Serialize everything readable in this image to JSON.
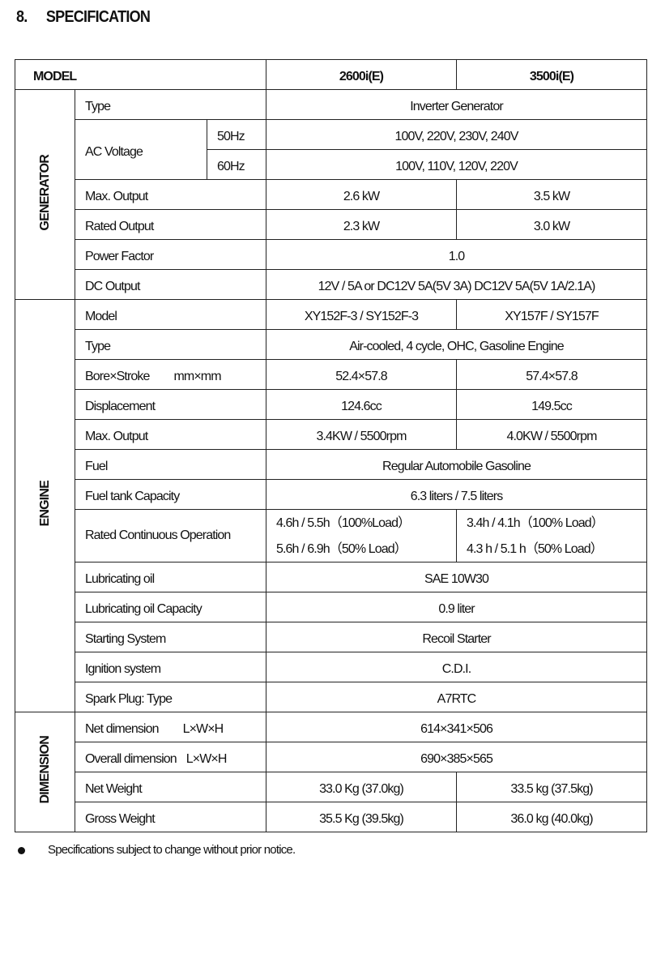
{
  "section": {
    "number": "8.",
    "title": "SPECIFICATION"
  },
  "header": {
    "model": "MODEL",
    "m1": "2600i(E)",
    "m2": "3500i(E)"
  },
  "generator": {
    "group": "GENERATOR",
    "type": {
      "label": "Type",
      "value": "Inverter Generator"
    },
    "ac": {
      "label": "AC Voltage",
      "hz50": "50Hz",
      "v50": "100V, 220V, 230V, 240V",
      "hz60": "60Hz",
      "v60": "100V, 110V, 120V, 220V"
    },
    "max_output": {
      "label": "Max. Output",
      "v1": "2.6 kW",
      "v2": "3.5 kW"
    },
    "rated_output": {
      "label": "Rated Output",
      "v1": "2.3 kW",
      "v2": "3.0 kW"
    },
    "power_factor": {
      "label": "Power Factor",
      "value": "1.0"
    },
    "dc_output": {
      "label": "DC Output",
      "value": "12V / 5A or DC12V 5A(5V 3A) DC12V 5A(5V 1A/2.1A)"
    }
  },
  "engine": {
    "group": "ENGINE",
    "model": {
      "label": "Model",
      "v1": "XY152F-3 / SY152F-3",
      "v2": "XY157F / SY157F"
    },
    "type": {
      "label": "Type",
      "value": "Air-cooled, 4 cycle, OHC, Gasoline Engine"
    },
    "bore": {
      "label": "Bore×Stroke",
      "unit": "mm×mm",
      "v1": "52.4×57.8",
      "v2": "57.4×57.8"
    },
    "displacement": {
      "label": "Displacement",
      "v1": "124.6cc",
      "v2": "149.5cc"
    },
    "max_output": {
      "label": "Max. Output",
      "v1": "3.4KW / 5500rpm",
      "v2": "4.0KW / 5500rpm"
    },
    "fuel": {
      "label": "Fuel",
      "value": "Regular Automobile Gasoline"
    },
    "tank": {
      "label": "Fuel tank Capacity",
      "value": "6.3 liters / 7.5 liters"
    },
    "rated_op": {
      "label": "Rated Continuous Operation",
      "v1a": "4.6h / 5.5h（100%Load）",
      "v1b": "5.6h / 6.9h（50% Load）",
      "v2a": "3.4h / 4.1h（100% Load）",
      "v2b": "4.3 h / 5.1 h（50% Load）"
    },
    "lub_oil": {
      "label": "Lubricating oil",
      "value": "SAE 10W30"
    },
    "lub_cap": {
      "label": "Lubricating oil Capacity",
      "value": "0.9 liter"
    },
    "starting": {
      "label": "Starting System",
      "value": "Recoil Starter"
    },
    "ignition": {
      "label": "Ignition system",
      "value": "C.D.I."
    },
    "spark": {
      "label": "Spark Plug: Type",
      "value": "A7RTC"
    }
  },
  "dimension": {
    "group": "DIMENSION",
    "net_dim": {
      "label": "Net dimension",
      "unit": "L×W×H",
      "value": "614×341×506"
    },
    "overall_dim": {
      "label": "Overall dimension",
      "unit": "L×W×H",
      "value": "690×385×565"
    },
    "net_weight": {
      "label": "Net Weight",
      "v1": "33.0 Kg (37.0kg)",
      "v2": "33.5 kg (37.5kg)"
    },
    "gross_weight": {
      "label": "Gross Weight",
      "v1": "35.5 Kg (39.5kg)",
      "v2": "36.0 kg (40.0kg)"
    }
  },
  "note": "Specifications subject to change without prior notice."
}
